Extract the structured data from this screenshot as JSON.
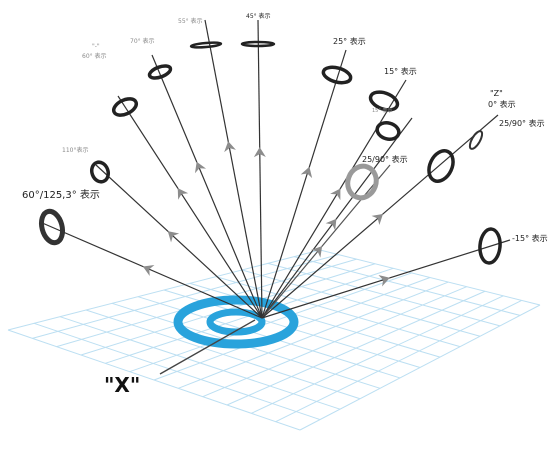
{
  "colors": {
    "ring": "#29a3dc",
    "grid": "#bcdff2",
    "ray": "#333333",
    "ray_light": "#555555",
    "arrow": "#8c8c8c"
  },
  "rays": [
    {
      "id": "60y",
      "label": "60°/125,3° 表示",
      "ring": "dark-large"
    },
    {
      "id": "110",
      "label": "110°表示",
      "ring": "dark"
    },
    {
      "id": "a",
      "label": "\"-\"",
      "ring": "dark"
    },
    {
      "id": "b",
      "label": "70° 表示",
      "ring": "dark"
    },
    {
      "id": "c",
      "label": "55° 表示",
      "ring": "flat"
    },
    {
      "id": "45",
      "label": "45° 表示",
      "ring": "flat"
    },
    {
      "id": "25",
      "label": "25° 表示",
      "ring": "dark"
    },
    {
      "id": "15",
      "label": "15° 表示",
      "ring": "dark"
    },
    {
      "id": "d",
      "label": "15° 表示",
      "ring": "dark"
    },
    {
      "id": "2590",
      "label": "25/90° 表示",
      "ring": "light"
    },
    {
      "id": "z",
      "label": "\"Z\"",
      "ring": "dark"
    },
    {
      "id": "neg15",
      "label": "-15° 表示",
      "ring": "dark"
    }
  ],
  "extra_labels": {
    "a_sub": "60° 表示",
    "z_sub": "0° 表示",
    "z_side": "25/90° 表示",
    "x_axis": "\"X\""
  }
}
